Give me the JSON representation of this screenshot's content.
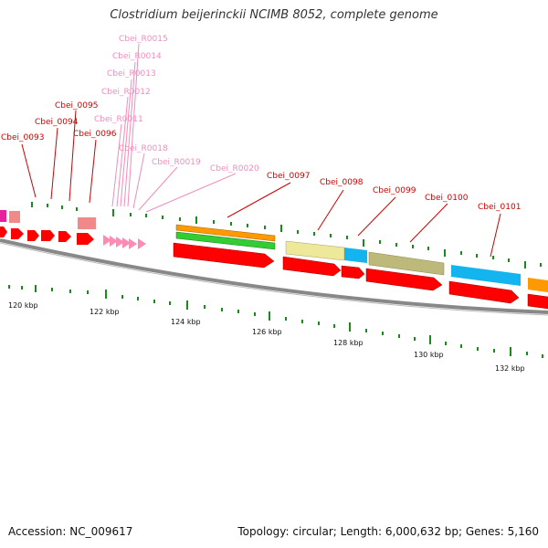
{
  "title": "Clostridium beijerinckii NCIMB 8052, complete genome",
  "accession": "Accession: NC_009617",
  "summary": "Topology: circular; Length: 6,000,632 bp; Genes: 5,160",
  "colors": {
    "cds": "#ff0000",
    "rna": "#ff8ab4",
    "magenta_feature": "#e6209a",
    "backbone": "#888888",
    "tick": "#1a8a1a",
    "gene_label": "#cc0000",
    "rna_label": "#f08cbc",
    "cog_orange": "#ff9900",
    "cog_green": "#33cc33",
    "cog_yellow": "#eee99a",
    "cog_cyan": "#14b4ee",
    "cog_olive": "#bdb97a",
    "rrna_box": "#f08a8a"
  },
  "gene_labels": [
    {
      "text": "Cbei_0093",
      "type": "gene"
    },
    {
      "text": "Cbei_0094",
      "type": "gene"
    },
    {
      "text": "Cbei_0095",
      "type": "gene"
    },
    {
      "text": "Cbei_0096",
      "type": "gene"
    },
    {
      "text": "Cbei_R0011",
      "type": "rna"
    },
    {
      "text": "Cbei_R0012",
      "type": "rna"
    },
    {
      "text": "Cbei_R0013",
      "type": "rna"
    },
    {
      "text": "Cbei_R0014",
      "type": "rna"
    },
    {
      "text": "Cbei_R0015",
      "type": "rna"
    },
    {
      "text": "Cbei_R0018",
      "type": "rna"
    },
    {
      "text": "Cbei_R0019",
      "type": "rna"
    },
    {
      "text": "Cbei_R0020",
      "type": "rna"
    },
    {
      "text": "Cbei_0097",
      "type": "gene"
    },
    {
      "text": "Cbei_0098",
      "type": "gene"
    },
    {
      "text": "Cbei_0099",
      "type": "gene"
    },
    {
      "text": "Cbei_0100",
      "type": "gene"
    },
    {
      "text": "Cbei_0101",
      "type": "gene"
    }
  ],
  "ruler_labels": [
    "120 kbp",
    "122 kbp",
    "124 kbp",
    "126 kbp",
    "128 kbp",
    "130 kbp",
    "132 kbp"
  ]
}
